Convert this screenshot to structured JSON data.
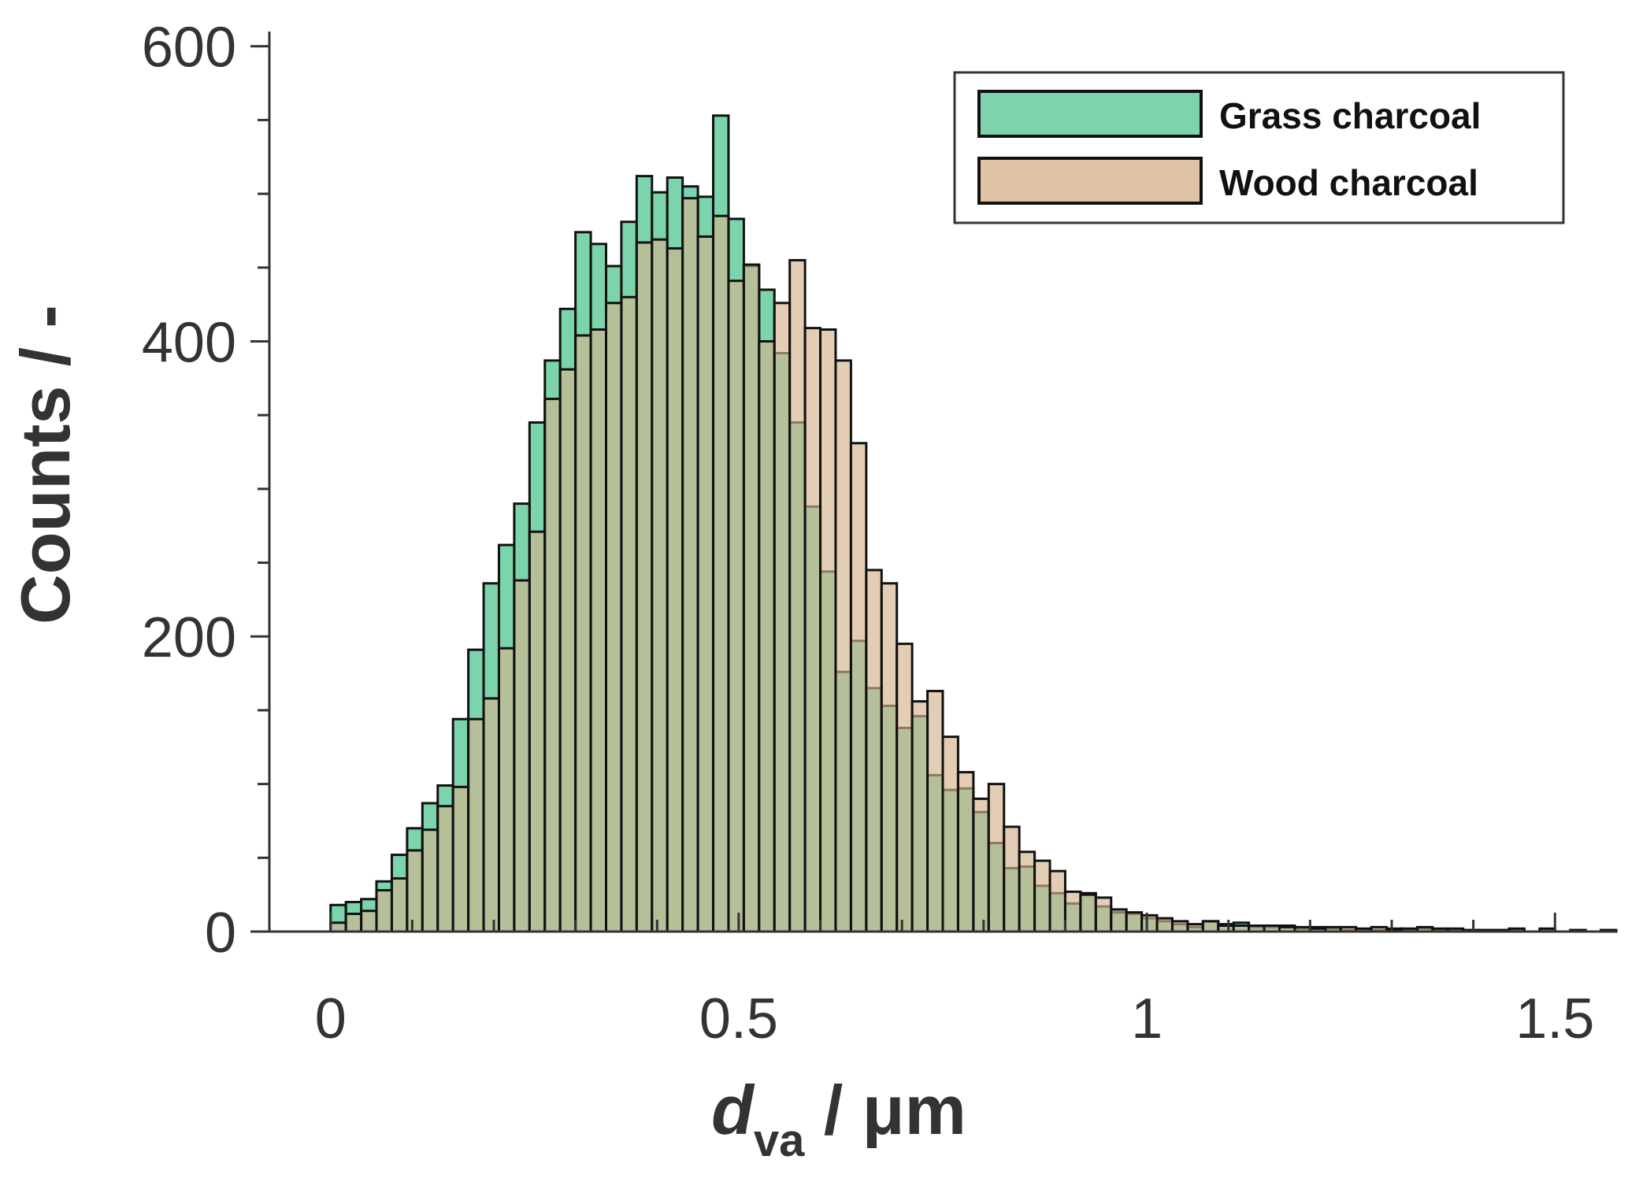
{
  "chart_data": {
    "type": "bar",
    "subtype": "overlaid-histogram",
    "xlabel_main": "d",
    "xlabel_sub": "va",
    "xlabel_unit": " / μm",
    "ylabel": "Counts / -",
    "xlim": [
      -0.075,
      1.575
    ],
    "ylim": [
      0,
      610
    ],
    "xticks": [
      "0",
      "0.5",
      "1",
      "1.5"
    ],
    "yticks": [
      "0",
      "200",
      "400",
      "600"
    ],
    "bin_width": 0.01875,
    "bin_start": 0,
    "grid": false,
    "legend_position": "top-right",
    "series": [
      {
        "name": "Grass charcoal",
        "color": "#4fc68f",
        "values": [
          18,
          20,
          22,
          34,
          52,
          70,
          87,
          99,
          144,
          191,
          236,
          262,
          290,
          345,
          387,
          422,
          474,
          466,
          451,
          481,
          512,
          501,
          511,
          505,
          498,
          553,
          483,
          451,
          435,
          392,
          345,
          288,
          244,
          176,
          197,
          165,
          153,
          138,
          146,
          106,
          96,
          97,
          81,
          60,
          43,
          44,
          31,
          26,
          19,
          26,
          17,
          13,
          12,
          9,
          7,
          5,
          3,
          7,
          5,
          6,
          3,
          3,
          4,
          2,
          3,
          2,
          1,
          1,
          1,
          2,
          1,
          2,
          1,
          1,
          1,
          1,
          1,
          1,
          0,
          1,
          0,
          1,
          0,
          1,
          0,
          1
        ],
        "legend_text": "Grass charcoal"
      },
      {
        "name": "Wood charcoal",
        "color": "#d4b48e",
        "values": [
          6,
          12,
          14,
          28,
          36,
          55,
          69,
          85,
          98,
          144,
          158,
          192,
          238,
          271,
          361,
          381,
          404,
          408,
          426,
          430,
          467,
          469,
          463,
          497,
          471,
          485,
          441,
          452,
          400,
          426,
          455,
          409,
          408,
          387,
          331,
          245,
          236,
          195,
          156,
          163,
          132,
          108,
          90,
          100,
          71,
          54,
          48,
          41,
          27,
          25,
          23,
          15,
          13,
          11,
          9,
          7,
          5,
          7,
          4,
          4,
          4,
          4,
          3,
          3,
          2,
          3,
          3,
          2,
          3,
          1,
          2,
          3,
          2,
          2,
          1,
          1,
          1,
          2,
          0,
          2,
          0,
          1,
          0,
          1,
          0,
          1
        ],
        "legend_text": "Wood charcoal"
      }
    ]
  }
}
